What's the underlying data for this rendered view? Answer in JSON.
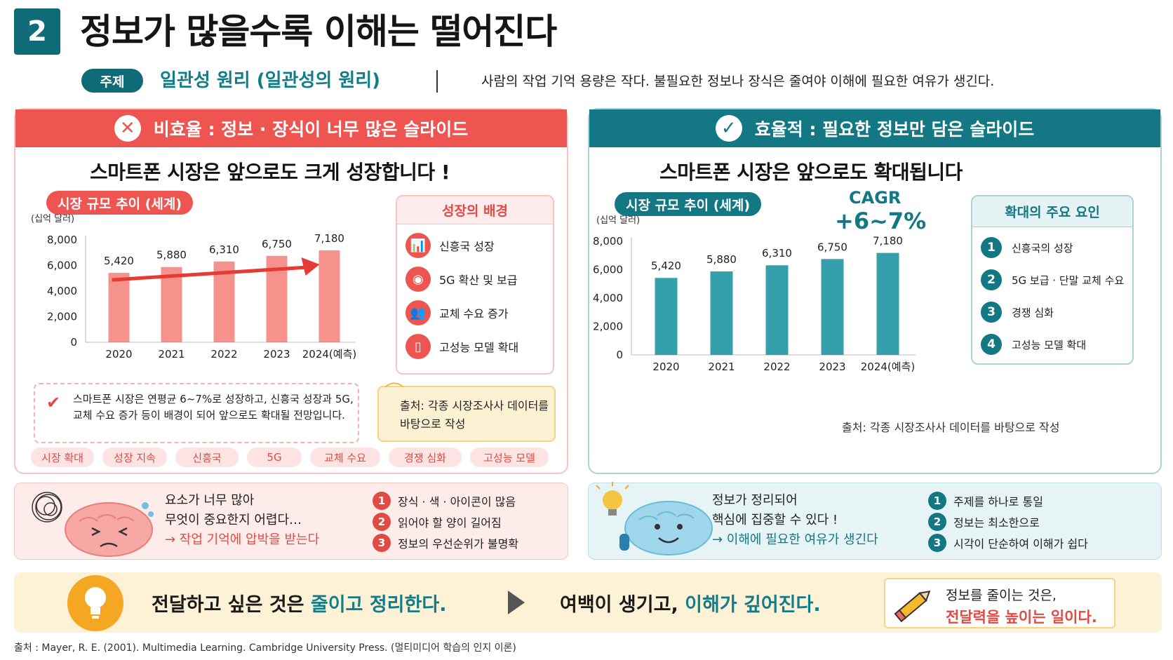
{
  "header": {
    "number": "2",
    "title": "정보가 많을수록 이해는 떨어진다",
    "topic_label": "주제",
    "topic_name": "일관성 원리 (일관성의 원리)",
    "topic_desc": "사람의 작업 기억 용량은 작다.  불필요한 정보나 장식은 줄여야 이해에 필요한 여유가 생긴다."
  },
  "left_panel": {
    "header": "비효율 : 정보 · 장식이 너무 많은 슬라이드",
    "header_icon": "x-icon",
    "slide_title": "스마트폰 시장은 앞으로도 크게 성장합니다 !",
    "chart_label": "시장 규모 추이 (세계)",
    "background_title": "성장의 배경",
    "background_items": [
      {
        "icon": "chart-up-icon",
        "label": "신흥국 성장"
      },
      {
        "icon": "wifi-icon",
        "label": "5G 확산 및 보급"
      },
      {
        "icon": "people-icon",
        "label": "교체 수요 증가"
      },
      {
        "icon": "phone-icon",
        "label": "고성능 모델 확대"
      }
    ],
    "note": "스마트폰 시장은 연평균 6~7%로 성장하고, 신흥국 성장과 5G, 교체 수요 증가 등이 배경이 되어 앞으로도 확대될 전망입니다.",
    "source": "출처: 각종 시장조사사 데이터를 바탕으로 작성",
    "tags": [
      "시장 확대",
      "성장 지속",
      "신흥국",
      "5G",
      "교체 수요",
      "경쟁 심화",
      "고성능 모델"
    ]
  },
  "right_panel": {
    "header": "효율적 : 필요한 정보만 담은 슬라이드",
    "header_icon": "check-icon",
    "slide_title": "스마트폰 시장은 앞으로도 확대됩니다",
    "chart_label": "시장 규모 추이 (세계)",
    "cagr_label": "CAGR",
    "cagr_value": "+6~7%",
    "factors_title": "확대의 주요 요인",
    "factors": [
      "신흥국의 성장",
      "5G 보급 · 단말 교체 수요",
      "경쟁 심화",
      "고성능 모델 확대"
    ],
    "source": "출처: 각종 시장조사사 데이터를 바탕으로 작성"
  },
  "chart_data": [
    {
      "type": "bar",
      "categories": [
        "2020",
        "2021",
        "2022",
        "2023",
        "2024(예측)"
      ],
      "values": [
        5420,
        5880,
        6310,
        6750,
        7180
      ],
      "value_labels": [
        "5,420",
        "5,880",
        "6,310",
        "6,750",
        "7,180"
      ],
      "title": "시장 규모 추이 (세계)",
      "ylabel": "(십억 달러)",
      "yticks": [
        "0",
        "2,000",
        "4,000",
        "6,000",
        "8,000"
      ],
      "ylim": [
        0,
        8000
      ],
      "trend_arrow": true,
      "color": "#f26d66"
    },
    {
      "type": "bar",
      "categories": [
        "2020",
        "2021",
        "2022",
        "2023",
        "2024(예측)"
      ],
      "values": [
        5420,
        5880,
        6310,
        6750,
        7180
      ],
      "value_labels": [
        "5,420",
        "5,880",
        "6,310",
        "6,750",
        "7,180"
      ],
      "title": "시장 규모 추이 (세계)",
      "ylabel": "(십억 달러)",
      "yticks": [
        "0",
        "2,000",
        "4,000",
        "6,000",
        "8,000"
      ],
      "ylim": [
        0,
        8000
      ],
      "trend_arrow": false,
      "color": "#1f95a3"
    }
  ],
  "mid_left": {
    "text_line1": "요소가 너무 많아",
    "text_line2": "무엇이 중요한지 어렵다…",
    "text_line3": "→ 작업 기억에 압박을 받는다",
    "items": [
      "장식 · 색 · 아이콘이 많음",
      "읽어야 할 양이 길어짐",
      "정보의 우선순위가 불명확"
    ],
    "numbers": [
      "1",
      "2",
      "3"
    ]
  },
  "mid_right": {
    "text_line1": "정보가 정리되어",
    "text_line2": "핵심에 집중할 수 있다 !",
    "text_line3": "→ 이해에 필요한 여유가 생긴다",
    "items": [
      "주제를 하나로 통일",
      "정보는 최소한으로",
      "시각이 단순하여 이해가 쉽다"
    ],
    "numbers": [
      "1",
      "2",
      "3"
    ]
  },
  "banner": {
    "part1": "전달하고 싶은 것은 ",
    "part1_hl": "줄이고 정리한다.",
    "part2": "여백이 생기고, ",
    "part2_hl": "이해가 깊어진다.",
    "card_line1": "정보를 줄이는 것은,",
    "card_line2": "전달력을 높이는 일이다."
  },
  "footer": "출처 : Mayer, R. E. (2001). Multimedia Learning. Cambridge University Press.  (멀티미디어 학습의 인지 이론)",
  "colors": {
    "red": "#ee5550",
    "teal": "#137784",
    "yellow_bg": "#fdf1d6"
  }
}
